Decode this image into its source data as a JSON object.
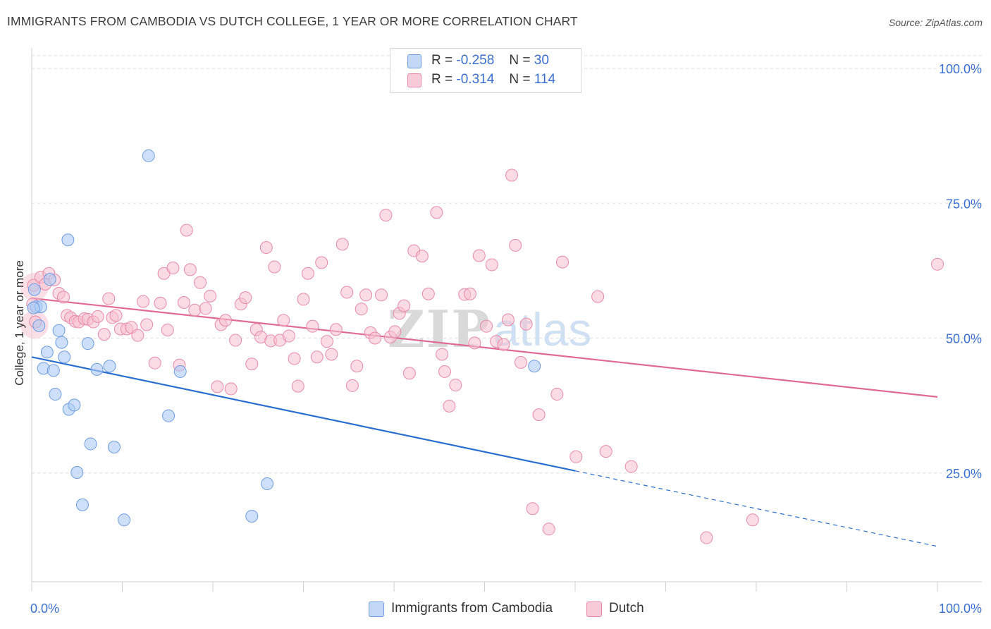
{
  "header": {
    "title": "IMMIGRANTS FROM CAMBODIA VS DUTCH COLLEGE, 1 YEAR OR MORE CORRELATION CHART",
    "source": "Source: ZipAtlas.com"
  },
  "legend": {
    "series1": {
      "r_label": "R =",
      "r_value": "-0.258",
      "n_label": "N =",
      "n_value": "30"
    },
    "series2": {
      "r_label": "R =",
      "r_value": "-0.314",
      "n_label": "N =",
      "n_value": "114"
    }
  },
  "colors": {
    "blue_fill": "#aecbf5",
    "blue_stroke": "#6f9de0",
    "blue_line": "#2a6fd0",
    "pink_fill": "#f7bfd0",
    "pink_stroke": "#e68aa8",
    "pink_line": "#e06a96",
    "tick_label": "#3a6fd0",
    "grid": "#dddddd"
  },
  "chart_data": {
    "type": "scatter",
    "title": "IMMIGRANTS FROM CAMBODIA VS DUTCH COLLEGE, 1 YEAR OR MORE CORRELATION CHART",
    "xlabel": "",
    "ylabel": "College, 1 year or more",
    "xlim": [
      0,
      100
    ],
    "ylim": [
      0,
      100
    ],
    "x_tick_labels": [
      "0.0%",
      "100.0%"
    ],
    "y_ticks": [
      25,
      50,
      75,
      100
    ],
    "y_tick_labels": [
      "25.0%",
      "50.0%",
      "75.0%",
      "100.0%"
    ],
    "grid": true,
    "legend_position": "bottom-center",
    "watermark": "ZIPatlas",
    "series": [
      {
        "name": "Immigrants from Cambodia",
        "color": "#aecbf5",
        "trend": {
          "x0": 0,
          "y0": 46.5,
          "x1": 60,
          "y1": 25.4,
          "dashed_to_x": 100,
          "dashed_to_y": 11.4
        },
        "points": [
          [
            0.3,
            59.0
          ],
          [
            0.5,
            55.8
          ],
          [
            0.8,
            52.3
          ],
          [
            1.0,
            55.8
          ],
          [
            1.3,
            44.4
          ],
          [
            1.7,
            47.4
          ],
          [
            2.0,
            60.9
          ],
          [
            2.4,
            44.0
          ],
          [
            2.6,
            39.6
          ],
          [
            3.0,
            51.4
          ],
          [
            3.3,
            49.2
          ],
          [
            3.6,
            46.5
          ],
          [
            4.0,
            68.2
          ],
          [
            4.1,
            36.8
          ],
          [
            4.7,
            37.6
          ],
          [
            5.0,
            25.1
          ],
          [
            5.6,
            19.1
          ],
          [
            6.2,
            49.0
          ],
          [
            6.5,
            30.4
          ],
          [
            7.2,
            44.2
          ],
          [
            8.6,
            44.8
          ],
          [
            9.1,
            29.8
          ],
          [
            10.2,
            16.3
          ],
          [
            12.9,
            83.8
          ],
          [
            16.4,
            43.8
          ],
          [
            15.1,
            35.6
          ],
          [
            26.0,
            23.0
          ],
          [
            24.3,
            17.0
          ],
          [
            55.5,
            44.8
          ],
          [
            0.2,
            55.6
          ]
        ]
      },
      {
        "name": "Dutch",
        "color": "#f7bfd0",
        "trend": {
          "x0": 0,
          "y0": 57.4,
          "x1": 100,
          "y1": 39.1
        },
        "points": [
          [
            0.2,
            59.8
          ],
          [
            0.4,
            53.0
          ],
          [
            1.0,
            61.3
          ],
          [
            1.5,
            60.0
          ],
          [
            1.9,
            62.0
          ],
          [
            2.5,
            60.8
          ],
          [
            3.0,
            58.3
          ],
          [
            3.5,
            57.6
          ],
          [
            3.9,
            54.2
          ],
          [
            4.3,
            53.8
          ],
          [
            4.8,
            53.1
          ],
          [
            5.2,
            53.0
          ],
          [
            5.8,
            53.6
          ],
          [
            6.2,
            53.5
          ],
          [
            6.8,
            53.0
          ],
          [
            7.3,
            54.0
          ],
          [
            8.0,
            50.7
          ],
          [
            8.5,
            57.3
          ],
          [
            8.9,
            53.8
          ],
          [
            9.3,
            54.2
          ],
          [
            9.8,
            51.7
          ],
          [
            10.5,
            51.7
          ],
          [
            11.0,
            52.0
          ],
          [
            11.7,
            50.5
          ],
          [
            12.3,
            56.8
          ],
          [
            12.7,
            52.5
          ],
          [
            13.6,
            45.4
          ],
          [
            14.2,
            56.5
          ],
          [
            14.6,
            62.0
          ],
          [
            15.0,
            51.5
          ],
          [
            15.6,
            63.0
          ],
          [
            16.3,
            45.0
          ],
          [
            16.8,
            56.6
          ],
          [
            17.1,
            70.0
          ],
          [
            17.5,
            62.7
          ],
          [
            18.0,
            55.2
          ],
          [
            18.6,
            60.3
          ],
          [
            19.2,
            55.5
          ],
          [
            19.7,
            57.8
          ],
          [
            20.5,
            41.0
          ],
          [
            20.9,
            52.5
          ],
          [
            21.4,
            53.3
          ],
          [
            22.0,
            40.6
          ],
          [
            22.5,
            49.6
          ],
          [
            23.1,
            56.3
          ],
          [
            23.6,
            57.5
          ],
          [
            24.3,
            45.2
          ],
          [
            24.8,
            51.6
          ],
          [
            25.3,
            50.2
          ],
          [
            25.9,
            66.8
          ],
          [
            26.4,
            49.5
          ],
          [
            26.8,
            63.2
          ],
          [
            27.4,
            49.6
          ],
          [
            27.8,
            53.3
          ],
          [
            28.4,
            50.4
          ],
          [
            29.0,
            46.2
          ],
          [
            29.4,
            41.1
          ],
          [
            30.0,
            57.2
          ],
          [
            30.5,
            62.0
          ],
          [
            31.0,
            52.2
          ],
          [
            31.5,
            46.5
          ],
          [
            32.0,
            64.0
          ],
          [
            32.6,
            49.4
          ],
          [
            33.1,
            47.0
          ],
          [
            33.6,
            51.6
          ],
          [
            34.3,
            67.4
          ],
          [
            34.8,
            58.5
          ],
          [
            35.4,
            41.2
          ],
          [
            35.9,
            44.8
          ],
          [
            36.4,
            55.4
          ],
          [
            36.9,
            58.0
          ],
          [
            37.4,
            51.0
          ],
          [
            37.9,
            50.0
          ],
          [
            38.6,
            58.0
          ],
          [
            39.1,
            72.8
          ],
          [
            39.6,
            50.2
          ],
          [
            40.1,
            51.2
          ],
          [
            40.6,
            54.6
          ],
          [
            41.1,
            56.0
          ],
          [
            41.7,
            43.5
          ],
          [
            42.2,
            66.2
          ],
          [
            43.1,
            65.2
          ],
          [
            43.8,
            58.2
          ],
          [
            44.7,
            73.3
          ],
          [
            45.3,
            47.0
          ],
          [
            45.6,
            43.8
          ],
          [
            46.1,
            37.4
          ],
          [
            46.8,
            41.3
          ],
          [
            47.8,
            58.1
          ],
          [
            48.4,
            58.2
          ],
          [
            48.9,
            49.1
          ],
          [
            49.4,
            65.3
          ],
          [
            50.2,
            52.2
          ],
          [
            50.8,
            63.6
          ],
          [
            51.3,
            49.4
          ],
          [
            52.1,
            48.8
          ],
          [
            52.6,
            53.4
          ],
          [
            53.0,
            80.2
          ],
          [
            53.4,
            67.2
          ],
          [
            54.0,
            45.5
          ],
          [
            54.6,
            52.6
          ],
          [
            55.3,
            18.4
          ],
          [
            56.0,
            35.8
          ],
          [
            57.1,
            14.6
          ],
          [
            58.0,
            39.6
          ],
          [
            58.6,
            64.1
          ],
          [
            60.1,
            28.0
          ],
          [
            62.5,
            57.7
          ],
          [
            63.4,
            29.0
          ],
          [
            66.2,
            26.2
          ],
          [
            74.5,
            13.0
          ],
          [
            79.6,
            16.3
          ],
          [
            100.0,
            63.7
          ],
          [
            0.1,
            56.3
          ]
        ]
      }
    ]
  },
  "bottom_legend": {
    "series1_label": "Immigrants from Cambodia",
    "series2_label": "Dutch"
  }
}
